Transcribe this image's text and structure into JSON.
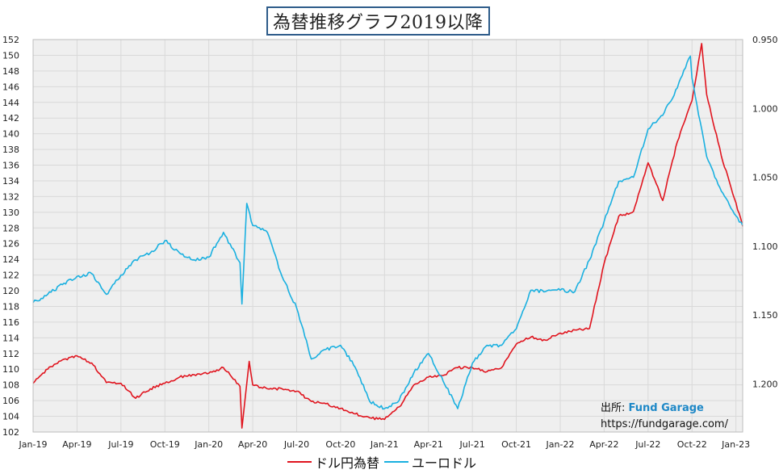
{
  "chart_data": {
    "type": "line",
    "title": "為替推移グラフ2019以降",
    "x_ticks": [
      "Jan-19",
      "Apr-19",
      "Jul-19",
      "Oct-19",
      "Jan-20",
      "Apr-20",
      "Jul-20",
      "Oct-20",
      "Jan-21",
      "Apr-21",
      "Jul-21",
      "Oct-21",
      "Jan-22",
      "Apr-22",
      "Jul-22",
      "Oct-22",
      "Jan-23"
    ],
    "y_left": {
      "min": 102,
      "max": 152,
      "step": 2
    },
    "y_right": {
      "min": 0.95,
      "max": 1.235,
      "inverted": true,
      "ticks": [
        "0.950",
        "1.000",
        "1.050",
        "1.100",
        "1.150",
        "1.200"
      ]
    },
    "grid": true,
    "legend_position": "bottom",
    "series": [
      {
        "name": "ドル円為替",
        "color": "#e0141e",
        "axis": "left",
        "x": [
          "2019-01",
          "2019-02",
          "2019-03",
          "2019-04",
          "2019-05",
          "2019-06",
          "2019-07",
          "2019-08",
          "2019-09",
          "2019-10",
          "2019-11",
          "2019-12",
          "2020-01",
          "2020-02",
          "2020-03-05",
          "2020-03-09",
          "2020-03-24",
          "2020-04",
          "2020-05",
          "2020-06",
          "2020-07",
          "2020-08",
          "2020-09",
          "2020-10",
          "2020-11",
          "2020-12",
          "2021-01",
          "2021-02",
          "2021-03",
          "2021-04",
          "2021-05",
          "2021-06",
          "2021-07",
          "2021-08",
          "2021-09",
          "2021-10",
          "2021-11",
          "2021-12",
          "2022-01",
          "2022-02",
          "2022-03",
          "2022-04",
          "2022-05",
          "2022-06",
          "2022-07",
          "2022-08",
          "2022-09",
          "2022-10",
          "2022-10-21",
          "2022-11",
          "2022-12",
          "2023-01",
          "2023-01-15"
        ],
        "y": [
          108.2,
          110.0,
          111.2,
          111.7,
          110.8,
          108.3,
          108.2,
          106.3,
          107.5,
          108.2,
          109.0,
          109.3,
          109.5,
          110.2,
          107.8,
          102.5,
          111.0,
          108.0,
          107.5,
          107.5,
          107.2,
          105.9,
          105.6,
          105.0,
          104.3,
          103.8,
          103.6,
          105.2,
          108.0,
          109.0,
          109.2,
          110.2,
          110.2,
          109.7,
          110.2,
          113.2,
          114.1,
          113.7,
          114.6,
          115.0,
          115.2,
          123.5,
          129.5,
          130.1,
          136.3,
          131.5,
          139.0,
          144.2,
          151.5,
          145.0,
          137.2,
          131.2,
          128.2
        ]
      },
      {
        "name": "ユーロドル",
        "color": "#1ab0e0",
        "axis": "right",
        "x": [
          "2019-01",
          "2019-02",
          "2019-03",
          "2019-04",
          "2019-05",
          "2019-06",
          "2019-07",
          "2019-08",
          "2019-09",
          "2019-10",
          "2019-11",
          "2019-12",
          "2020-01",
          "2020-02",
          "2020-03-05",
          "2020-03-09",
          "2020-03-19",
          "2020-04",
          "2020-05",
          "2020-06",
          "2020-07",
          "2020-08",
          "2020-09",
          "2020-10",
          "2020-11",
          "2020-12",
          "2021-01",
          "2021-02",
          "2021-03",
          "2021-04",
          "2021-05",
          "2021-06",
          "2021-07",
          "2021-08",
          "2021-09",
          "2021-10",
          "2021-11",
          "2021-12",
          "2022-01",
          "2022-02",
          "2022-03",
          "2022-04",
          "2022-05",
          "2022-06",
          "2022-07",
          "2022-08",
          "2022-09",
          "2022-09-28",
          "2022-10",
          "2022-11",
          "2022-12",
          "2023-01",
          "2023-01-15"
        ],
        "y": [
          1.141,
          1.135,
          1.128,
          1.122,
          1.12,
          1.135,
          1.121,
          1.11,
          1.105,
          1.096,
          1.105,
          1.11,
          1.108,
          1.09,
          1.112,
          1.142,
          1.069,
          1.085,
          1.09,
          1.122,
          1.145,
          1.182,
          1.175,
          1.172,
          1.188,
          1.213,
          1.218,
          1.212,
          1.192,
          1.178,
          1.198,
          1.218,
          1.185,
          1.172,
          1.172,
          1.16,
          1.132,
          1.133,
          1.132,
          1.133,
          1.11,
          1.082,
          1.053,
          1.05,
          1.015,
          1.005,
          0.985,
          0.962,
          0.978,
          1.035,
          1.06,
          1.078,
          1.085
        ]
      }
    ]
  },
  "credit": {
    "label": "出所: ",
    "brand": "Fund Garage",
    "url": "https://fundgarage.com/"
  },
  "colors": {
    "usdjpy": "#e0141e",
    "eurusd": "#1ab0e0",
    "grid": "#d9d9d9",
    "plot_bg": "#efefef",
    "title_border": "#2e5c8a"
  }
}
